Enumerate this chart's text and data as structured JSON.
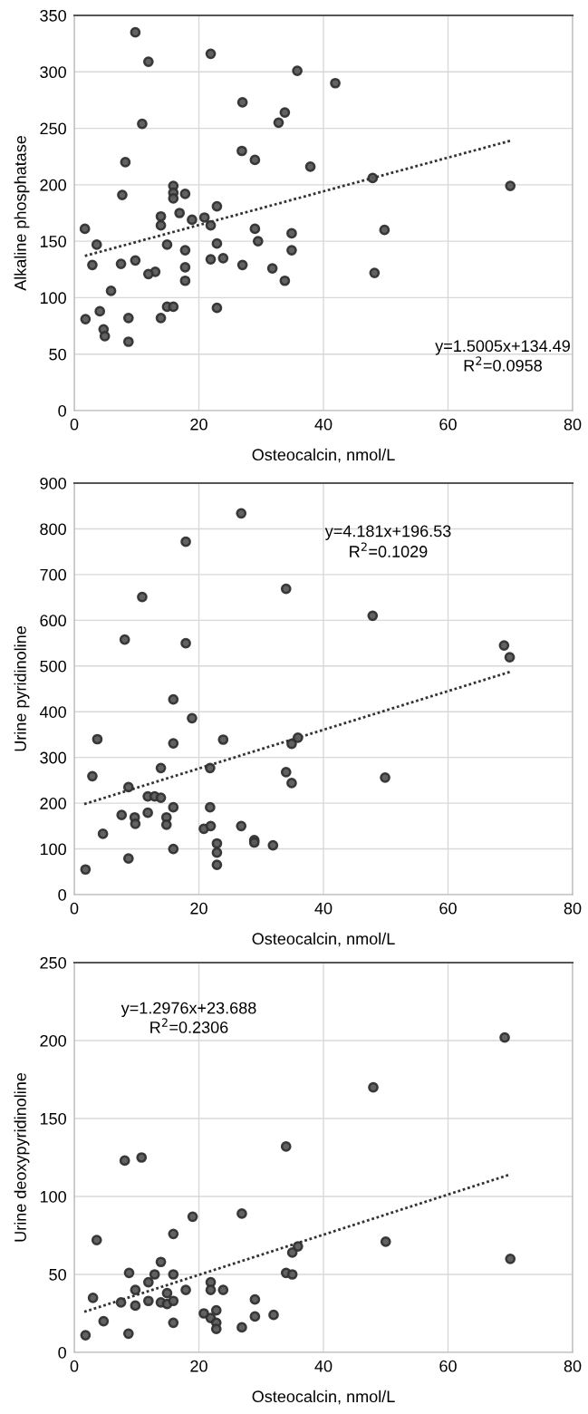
{
  "chart_data": [
    {
      "type": "scatter",
      "xlabel": "Osteocalcin, nmol/L",
      "ylabel": "Alkaline phosphatase",
      "xlim": [
        0,
        80
      ],
      "xticks": [
        0,
        20,
        40,
        60,
        80
      ],
      "ylim": [
        0,
        350
      ],
      "yticks": [
        0,
        50,
        100,
        150,
        200,
        250,
        300,
        350
      ],
      "grid": true,
      "marker": "circle",
      "annotations": [
        "y=1.5005x+134.49",
        "R$^{2}$=0.0958"
      ],
      "series": [
        {
          "color": "#5a5a5a",
          "x": [
            9.8,
            11.9,
            21.9,
            35.8,
            41.9,
            27.0,
            33.8,
            32.8,
            10.9,
            8.2,
            26.9,
            29.0,
            37.9,
            47.9,
            70.0,
            7.7,
            15.9,
            15.9,
            15.9,
            17.8,
            22.9,
            16.9,
            13.9,
            13.9,
            18.9,
            20.9,
            21.9,
            1.7,
            29.0,
            49.8,
            34.9,
            3.6,
            14.9,
            22.9,
            29.5,
            17.8,
            34.9,
            2.9,
            7.5,
            9.8,
            21.9,
            23.9,
            27.0,
            31.8,
            13.0,
            11.9,
            17.8,
            48.2,
            17.8,
            33.8,
            5.9,
            4.1,
            1.8,
            8.7,
            13.9,
            14.9,
            15.9,
            22.9,
            4.7,
            4.9,
            8.7
          ],
          "values": [
            335,
            309,
            316,
            301,
            290,
            273,
            264,
            255,
            254,
            220,
            230,
            222,
            216,
            206,
            199,
            191,
            199,
            193,
            188,
            192,
            181,
            175,
            172,
            164,
            169,
            171,
            164,
            161,
            161,
            160,
            157,
            147,
            147,
            148,
            150,
            142,
            142,
            129,
            130,
            133,
            134,
            135,
            129,
            126,
            123,
            121,
            127,
            122,
            115,
            115,
            106,
            88,
            81,
            82,
            82,
            92,
            92,
            91,
            72,
            66,
            61
          ]
        },
        {
          "type": "line",
          "line_style": "dotted",
          "marker": "none",
          "color": "#333333",
          "x": [
            1.7,
            70.0
          ],
          "values": [
            137,
            239
          ]
        }
      ]
    },
    {
      "type": "scatter",
      "xlabel": "Osteocalcin, nmol/L",
      "ylabel": "Urine pyridinoline",
      "xlim": [
        0,
        80
      ],
      "xticks": [
        0,
        20,
        40,
        60,
        80
      ],
      "ylim": [
        0,
        900
      ],
      "yticks": [
        0,
        100,
        200,
        300,
        400,
        500,
        600,
        700,
        800,
        900
      ],
      "grid": true,
      "marker": "circle",
      "annotations": [
        "y=4.181x+196.53",
        "R$^{2}$=0.1029"
      ],
      "series": [
        {
          "color": "#5a5a5a",
          "x": [
            26.8,
            17.9,
            34.0,
            10.9,
            47.9,
            8.1,
            17.9,
            69.0,
            69.9,
            15.9,
            18.9,
            3.7,
            23.9,
            15.9,
            35.9,
            34.9,
            13.9,
            21.8,
            2.9,
            34.0,
            34.9,
            49.9,
            8.7,
            11.8,
            12.9,
            13.9,
            15.9,
            21.8,
            7.6,
            9.7,
            9.8,
            11.8,
            14.8,
            14.8,
            20.8,
            21.9,
            26.8,
            22.9,
            22.9,
            22.9,
            28.9,
            28.9,
            31.9,
            15.9,
            4.6,
            8.7,
            1.8
          ],
          "values": [
            834,
            772,
            669,
            651,
            610,
            558,
            550,
            545,
            519,
            427,
            386,
            340,
            339,
            331,
            343,
            330,
            277,
            277,
            259,
            268,
            244,
            256,
            235,
            215,
            215,
            212,
            191,
            191,
            174,
            169,
            155,
            179,
            169,
            153,
            144,
            150,
            150,
            112,
            92,
            65,
            119,
            114,
            108,
            100,
            133,
            79,
            55
          ]
        },
        {
          "type": "line",
          "line_style": "dotted",
          "marker": "none",
          "color": "#333333",
          "x": [
            1.6,
            69.9
          ],
          "values": [
            198,
            487
          ]
        }
      ]
    },
    {
      "type": "scatter",
      "xlabel": "Osteocalcin, nmol/L",
      "ylabel": "Urine deoxypyridinoline",
      "xlim": [
        0,
        80
      ],
      "xticks": [
        0,
        20,
        40,
        60,
        80
      ],
      "ylim": [
        0,
        250
      ],
      "yticks": [
        0,
        50,
        100,
        150,
        200,
        250
      ],
      "grid": true,
      "marker": "circle",
      "annotations": [
        "y=1.2976x+23.688",
        "R$^{2}$=0.2306"
      ],
      "series": [
        {
          "color": "#5a5a5a",
          "x": [
            69.1,
            48.0,
            34.0,
            8.1,
            10.8,
            26.9,
            19.0,
            15.9,
            3.6,
            50.0,
            70.0,
            35.9,
            35.0,
            13.9,
            34.0,
            35.0,
            8.8,
            12.9,
            15.9,
            11.9,
            21.9,
            21.9,
            9.8,
            14.9,
            17.9,
            23.9,
            3.0,
            7.5,
            11.9,
            13.9,
            14.9,
            15.9,
            9.8,
            29.0,
            22.8,
            20.8,
            21.9,
            29.0,
            32.0,
            22.8,
            22.8,
            4.7,
            15.9,
            26.9,
            1.8,
            8.7
          ],
          "values": [
            202,
            170,
            132,
            123,
            125,
            89,
            87,
            76,
            72,
            71,
            60,
            68,
            64,
            58,
            51,
            50,
            51,
            50,
            50,
            45,
            45,
            40,
            40,
            38,
            40,
            40,
            35,
            32,
            33,
            32,
            31,
            33,
            30,
            34,
            27,
            25,
            22,
            23,
            24,
            19,
            15,
            20,
            19,
            16,
            11,
            12
          ]
        },
        {
          "type": "line",
          "line_style": "dotted",
          "marker": "none",
          "color": "#333333",
          "x": [
            1.6,
            69.9
          ],
          "values": [
            26,
            114
          ]
        }
      ]
    }
  ]
}
